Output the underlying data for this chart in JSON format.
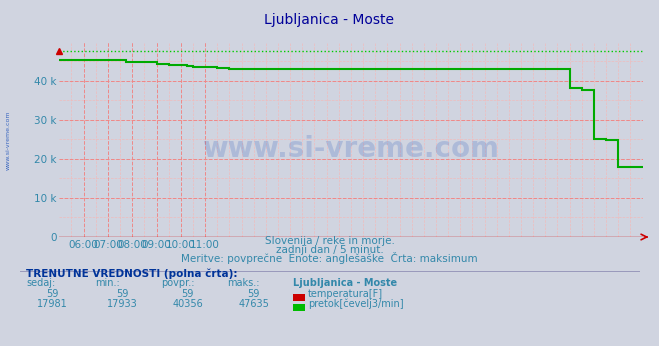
{
  "title": "Ljubljanica - Moste",
  "title_color": "#000099",
  "bg_color": "#d0d4e0",
  "plot_bg_color": "#d0d4e0",
  "grid_major_color": "#ee8888",
  "grid_minor_color": "#f0bbbb",
  "text_color": "#3388aa",
  "bold_color": "#003399",
  "temp_color": "#cc0000",
  "flow_color": "#00aa00",
  "max_line_color": "#00cc00",
  "watermark_color": "#2255bb",
  "sidebar_color": "#2255bb",
  "ylim": [
    0,
    50000
  ],
  "xlim": [
    0,
    288
  ],
  "ytick_values": [
    0,
    10000,
    20000,
    30000,
    40000
  ],
  "ytick_labels": [
    "0",
    "10 k",
    "20 k",
    "30 k",
    "40 k"
  ],
  "xtick_positions": [
    12,
    24,
    36,
    48,
    60,
    72
  ],
  "xtick_labels": [
    "06:00",
    "07:00",
    "08:00",
    "09:00",
    "10:00",
    "11:00"
  ],
  "subtitle1": "Slovenija / reke in morje.",
  "subtitle2": "zadnji dan / 5 minut.",
  "subtitle3": "Meritve: povprečne  Enote: anglešaške  Črta: maksimum",
  "footer_title": "TRENUTNE VREDNOSTI (polna črta):",
  "col_headers": [
    "sedaj:",
    "min.:",
    "povpr.:",
    "maks.:",
    "Ljubljanica - Moste"
  ],
  "row1_vals": [
    "59",
    "59",
    "59",
    "59"
  ],
  "row1_label": "temperatura[F]",
  "row1_box_color": "#cc0000",
  "row2_vals": [
    "17981",
    "17933",
    "40356",
    "47635"
  ],
  "row2_label": "pretok[čevelj3/min]",
  "row2_box_color": "#00bb00",
  "max_flow": 47635,
  "temp_const": 59,
  "flow_x": [
    0,
    6,
    6,
    33,
    33,
    36,
    36,
    48,
    48,
    54,
    54,
    60,
    60,
    63,
    63,
    66,
    66,
    72,
    72,
    78,
    78,
    84,
    84,
    252,
    252,
    258,
    258,
    264,
    264,
    270,
    270,
    276,
    276,
    288
  ],
  "flow_y": [
    45200,
    45200,
    45300,
    45300,
    44800,
    44800,
    44700,
    44700,
    44300,
    44300,
    44100,
    44100,
    43900,
    43900,
    43700,
    43700,
    43600,
    43600,
    43400,
    43400,
    43200,
    43200,
    43000,
    43000,
    38000,
    38000,
    37500,
    37500,
    25000,
    25000,
    24800,
    24800,
    18000,
    18000
  ]
}
